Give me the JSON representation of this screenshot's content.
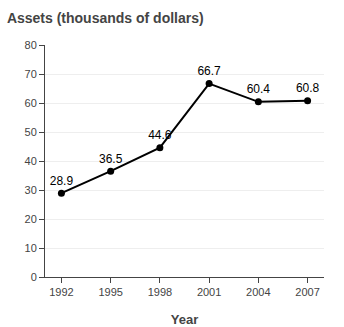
{
  "chart_data": {
    "type": "line",
    "title": "Assets (thousands of dollars)",
    "xlabel": "Year",
    "x": [
      1992,
      1995,
      1998,
      2001,
      2004,
      2007
    ],
    "values": [
      28.9,
      36.5,
      44.6,
      66.7,
      60.4,
      60.8
    ],
    "color": "#000000",
    "marker": "circle",
    "xlim": [
      1991,
      2008
    ],
    "xticks": [
      1992,
      1995,
      1998,
      2001,
      2004,
      2007
    ],
    "ylim": [
      0,
      80
    ],
    "yticks": [
      0,
      10,
      20,
      30,
      40,
      50,
      60,
      70,
      80
    ],
    "grid": true,
    "data_labels": true
  }
}
